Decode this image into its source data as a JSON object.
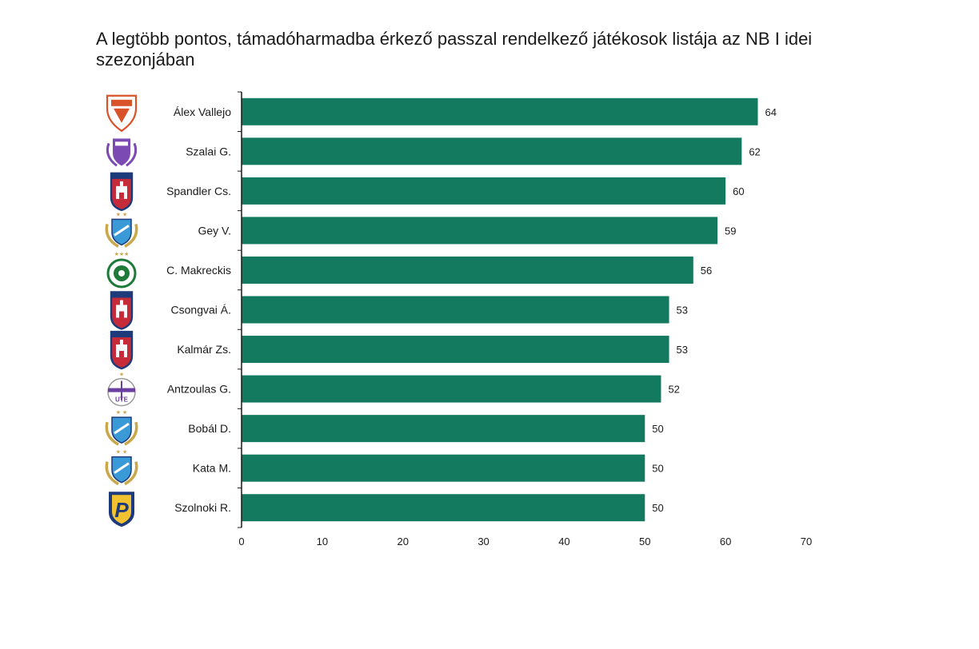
{
  "chart_data": {
    "type": "bar",
    "orientation": "horizontal",
    "title": "A legtöbb pontos, támadóharmadba érkező passzal rendelkező játékosok listája az NB I idei szezonjában",
    "categories": [
      "Álex Vallejo",
      "Szalai G.",
      "Spandler Cs.",
      "Gey V.",
      "C. Makreckis",
      "Csongvai Á.",
      "Kalmár Zs.",
      "Antzoulas G.",
      "Bobál D.",
      "Kata M.",
      "Szolnoki R."
    ],
    "values": [
      64,
      62,
      60,
      59,
      56,
      53,
      53,
      52,
      50,
      50,
      50
    ],
    "club_logos": [
      "dvtk-logo-icon",
      "kecskemet-kte-logo-icon",
      "fehervar-logo-icon",
      "mtk-logo-icon",
      "ferencvaros-logo-icon",
      "fehervar-logo-icon",
      "fehervar-logo-icon",
      "ujpest-logo-icon",
      "mtk-logo-icon",
      "mtk-logo-icon",
      "puskas-akademia-logo-icon"
    ],
    "xlim": [
      0,
      70
    ],
    "xticks": [
      "0",
      "10",
      "20",
      "30",
      "40",
      "50",
      "60",
      "70"
    ],
    "grid": false,
    "bar_color": "#147a5f"
  }
}
